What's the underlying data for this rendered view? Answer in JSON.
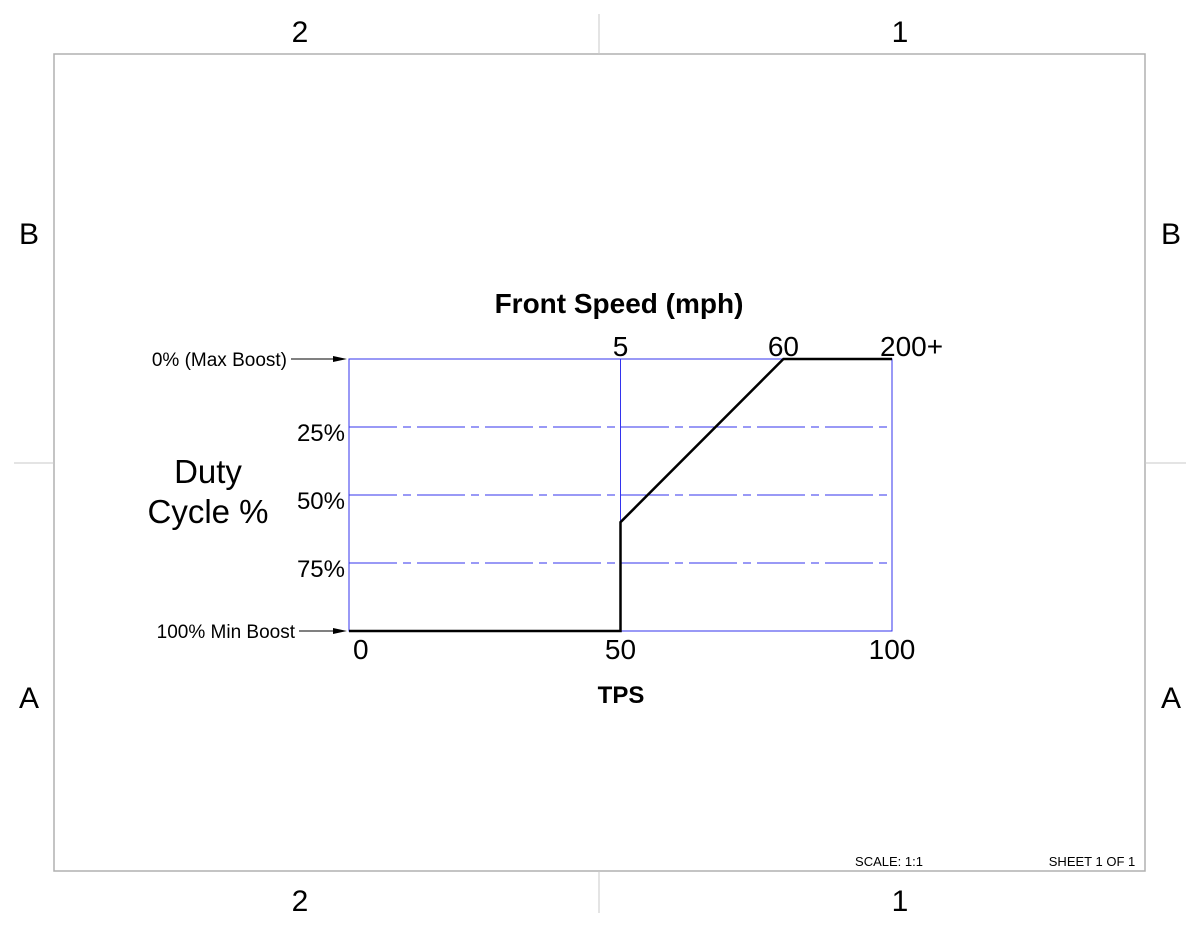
{
  "sheet": {
    "zone_top_left": "2",
    "zone_top_right": "1",
    "zone_bottom_left": "2",
    "zone_bottom_right": "1",
    "zone_left_upper": "B",
    "zone_left_lower": "A",
    "zone_right_upper": "B",
    "zone_right_lower": "A",
    "scale_label": "SCALE: 1:1",
    "sheet_label": "SHEET 1 OF 1"
  },
  "chart_data": {
    "type": "line",
    "title": "Front Speed (mph)",
    "xlabel": "TPS",
    "ylabel_line1": "Duty",
    "ylabel_line2": "Cycle %",
    "x_ticks": [
      {
        "value": 0,
        "label": "0"
      },
      {
        "value": 50,
        "label": "50"
      },
      {
        "value": 100,
        "label": "100"
      }
    ],
    "top_ticks": [
      {
        "value": 50,
        "label": "5"
      },
      {
        "value": 80,
        "label": "60"
      },
      {
        "value": 100,
        "label": "200+"
      }
    ],
    "y_ticks": [
      {
        "value": 0,
        "label": "0% (Max Boost)",
        "arrow": true
      },
      {
        "value": 25,
        "label": "25%",
        "arrow": false
      },
      {
        "value": 50,
        "label": "50%",
        "arrow": false
      },
      {
        "value": 75,
        "label": "75%",
        "arrow": false
      },
      {
        "value": 100,
        "label": "100% Min Boost",
        "arrow": true
      }
    ],
    "xlim": [
      0,
      100
    ],
    "ylim": [
      0,
      100
    ],
    "y_inverted": true,
    "grid": true,
    "grid_color": "#3333ee",
    "line_color": "#000000",
    "series": [
      {
        "x": [
          0,
          50,
          50,
          80,
          100
        ],
        "y": [
          100,
          100,
          60,
          0,
          0
        ]
      }
    ]
  }
}
